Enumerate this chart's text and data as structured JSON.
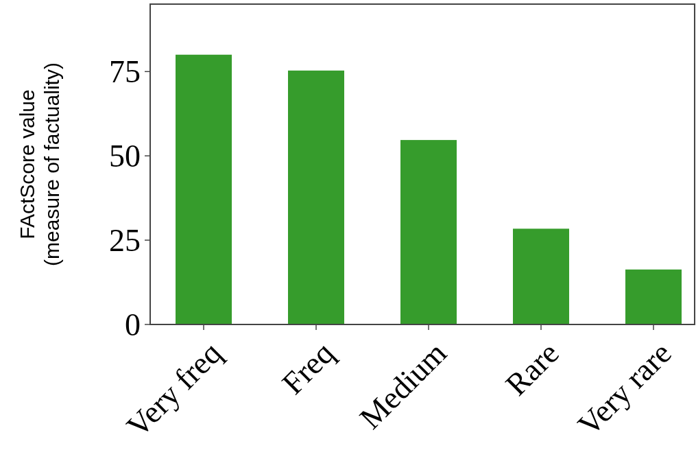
{
  "chart_data": {
    "type": "bar",
    "ylabel": "FActScore value\n(measure of factuality)",
    "categories": [
      "Very freq",
      "Freq",
      "Medium",
      "Rare",
      "Very rare"
    ],
    "values": [
      80,
      75.3,
      54.7,
      28.4,
      16.3
    ],
    "color": "#369c2c",
    "ylim": [
      0,
      95
    ],
    "yticks": [
      0,
      25,
      50,
      75
    ],
    "grid": false
  }
}
